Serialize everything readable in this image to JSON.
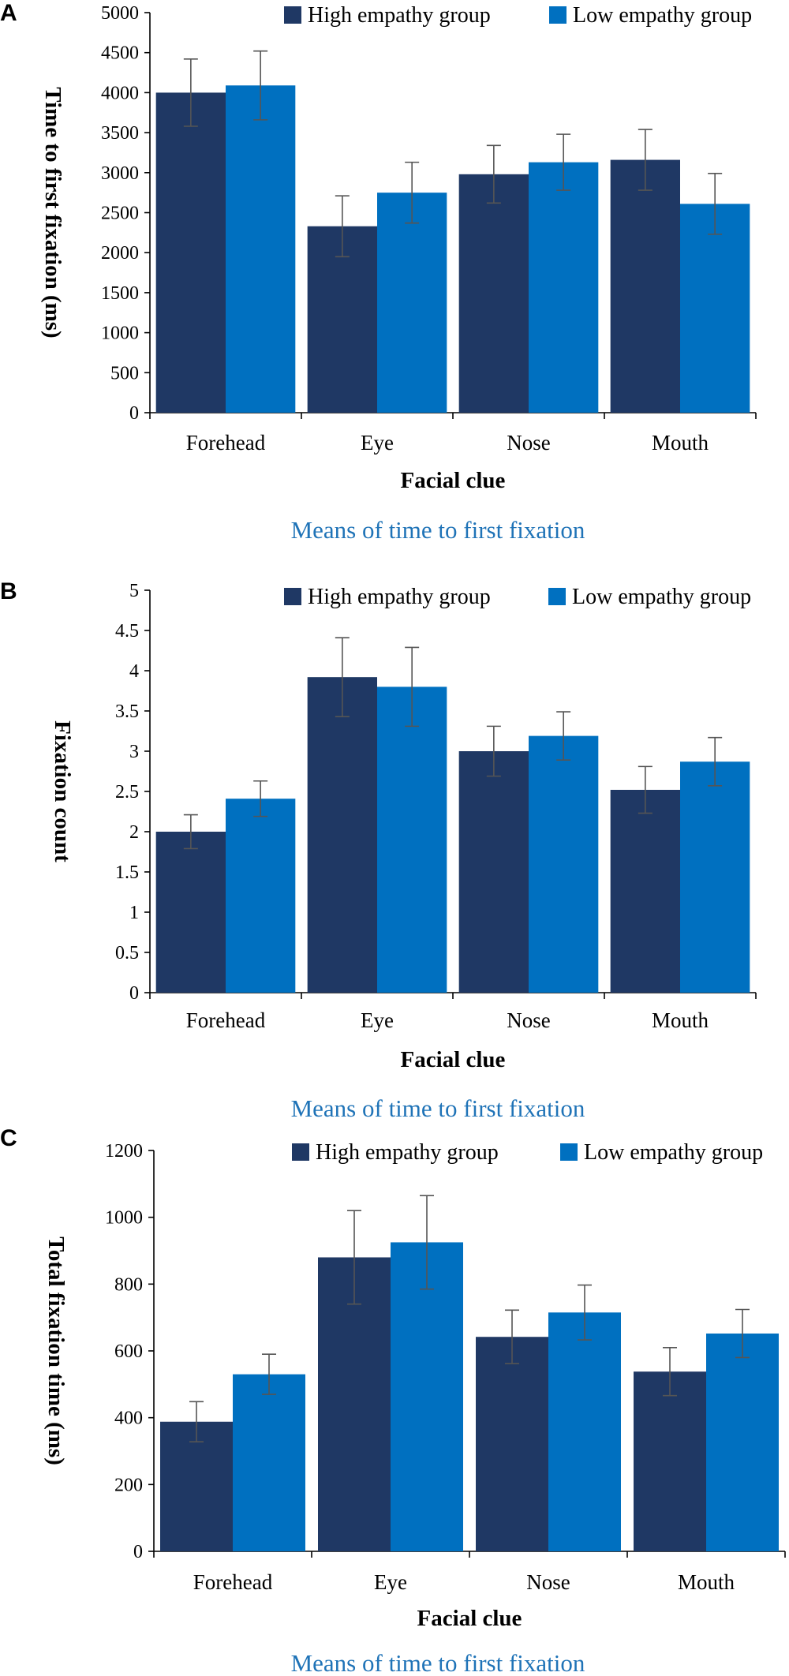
{
  "chart_data": [
    {
      "type": "bar",
      "panel_label": "A",
      "categories": [
        "Forehead",
        "Eye",
        "Nose",
        "Mouth"
      ],
      "series": [
        {
          "name": "High empathy group",
          "color": "#1F3864",
          "values": [
            4000,
            2330,
            2980,
            3160
          ],
          "errors": [
            420,
            380,
            360,
            380
          ]
        },
        {
          "name": "Low empathy group",
          "color": "#0070C0",
          "values": [
            4090,
            2750,
            3130,
            2610
          ],
          "errors": [
            430,
            380,
            350,
            380
          ]
        }
      ],
      "ylim": [
        0,
        5000
      ],
      "yticks": [
        "0",
        "500",
        "1000",
        "1500",
        "2000",
        "2500",
        "3000",
        "3500",
        "4000",
        "4500",
        "5000"
      ],
      "ylabel": "Time to first fixation (ms)",
      "xlabel": "Facial clue",
      "caption": "Means of time to first fixation",
      "caption_color": "#1F73B7"
    },
    {
      "type": "bar",
      "panel_label": "B",
      "categories": [
        "Forehead",
        "Eye",
        "Nose",
        "Mouth"
      ],
      "series": [
        {
          "name": "High empathy group",
          "color": "#1F3864",
          "values": [
            2.0,
            3.92,
            3.0,
            2.52
          ],
          "errors": [
            0.21,
            0.49,
            0.31,
            0.29
          ]
        },
        {
          "name": "Low empathy group",
          "color": "#0070C0",
          "values": [
            2.41,
            3.8,
            3.19,
            2.87
          ],
          "errors": [
            0.22,
            0.49,
            0.3,
            0.3
          ]
        }
      ],
      "ylim": [
        0,
        5
      ],
      "yticks": [
        "0",
        "0.5",
        "1",
        "1.5",
        "2",
        "2.5",
        "3",
        "3.5",
        "4",
        "4.5",
        "5"
      ],
      "ylabel": "Fixation count",
      "xlabel": "Facial clue",
      "caption": "Means of time to first fixation",
      "caption_color": "#1F73B7"
    },
    {
      "type": "bar",
      "panel_label": "C",
      "categories": [
        "Forehead",
        "Eye",
        "Nose",
        "Mouth"
      ],
      "series": [
        {
          "name": "High empathy group",
          "color": "#1F3864",
          "values": [
            388,
            880,
            642,
            538
          ],
          "errors": [
            60,
            140,
            80,
            72
          ]
        },
        {
          "name": "Low empathy group",
          "color": "#0070C0",
          "values": [
            530,
            925,
            715,
            652
          ],
          "errors": [
            60,
            140,
            82,
            72
          ]
        }
      ],
      "ylim": [
        0,
        1200
      ],
      "yticks": [
        "0",
        "200",
        "400",
        "600",
        "800",
        "1000",
        "1200"
      ],
      "ylabel": "Total fixation time (ms)",
      "xlabel": "Facial clue",
      "caption": "Means of time to first fixation",
      "caption_color": "#1F73B7"
    }
  ]
}
